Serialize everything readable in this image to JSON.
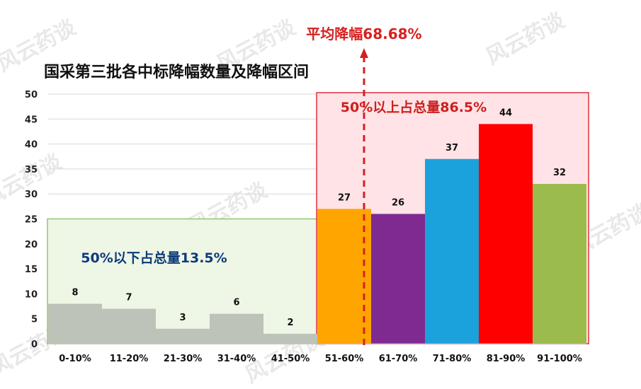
{
  "watermark": "风云药谈",
  "chart_data": {
    "type": "bar",
    "title": "国采第三批各中标降幅数量及降幅区间",
    "categories": [
      "0-10%",
      "11-20%",
      "21-30%",
      "31-40%",
      "41-50%",
      "51-60%",
      "61-70%",
      "71-80%",
      "81-90%",
      "91-100%"
    ],
    "values": [
      8,
      7,
      3,
      6,
      2,
      27,
      26,
      37,
      44,
      32
    ],
    "colors": [
      "#bdc3b8",
      "#bdc3b8",
      "#bdc3b8",
      "#bdc3b8",
      "#bdc3b8",
      "#ffa500",
      "#7f2a91",
      "#1ba1dc",
      "#ff0000",
      "#9bbb4c"
    ],
    "ylim": [
      0,
      50
    ],
    "yticks": [
      0,
      5,
      10,
      15,
      20,
      25,
      30,
      35,
      40,
      45,
      50
    ],
    "grid": true,
    "xlabel": "",
    "ylabel": "",
    "annotations": {
      "below_50": {
        "text": "50%以下占总量13.5%",
        "range": [
          0,
          4
        ],
        "top_value": 25,
        "color": "#0d3b7a"
      },
      "above_50": {
        "text": "50%以上占总量86.5%",
        "range": [
          5,
          9
        ],
        "top_value": 50,
        "color": "#cc1f1f"
      },
      "average": {
        "text": "平均降幅68.68%",
        "value": 68.68,
        "color": "#d62020"
      }
    }
  }
}
